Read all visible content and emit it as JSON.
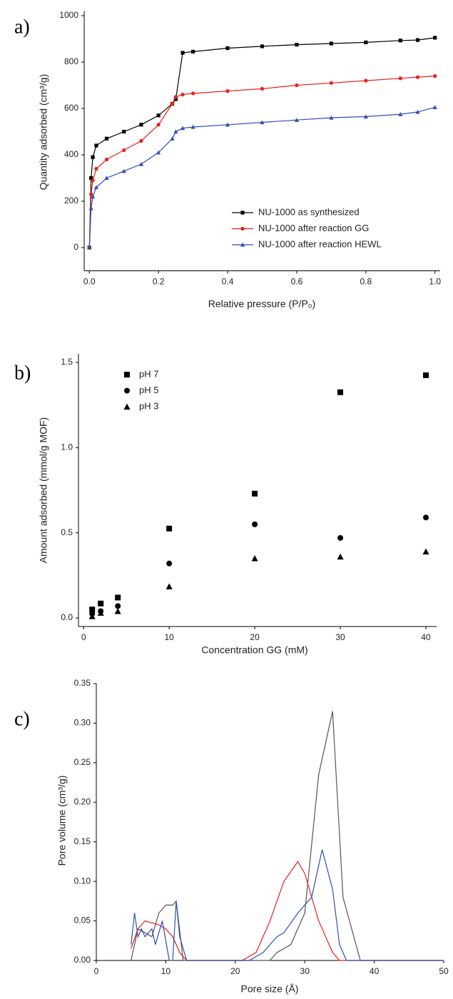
{
  "chart_data": [
    {
      "type": "line",
      "panel_label": "a)",
      "xlabel": "Relative pressure (P/P₀)",
      "ylabel": "Quantity adsorbed (cm³/g)",
      "xlim": [
        -0.015,
        1.015
      ],
      "ylim": [
        -100,
        1020
      ],
      "xticks": [
        {
          "value": 0,
          "label": "0.0"
        },
        0.2,
        0.4,
        0.6,
        0.8,
        {
          "value": 1,
          "label": "1.0"
        }
      ],
      "yticks": [
        0,
        200,
        400,
        600,
        800,
        1000
      ],
      "legend": "lower right",
      "markers": true,
      "x": [
        0.0,
        0.005,
        0.01,
        0.02,
        0.05,
        0.1,
        0.15,
        0.2,
        0.24,
        0.25,
        0.27,
        0.3,
        0.4,
        0.5,
        0.6,
        0.7,
        0.8,
        0.9,
        0.95,
        1.0
      ],
      "series": [
        {
          "name": "NU-1000 as synthesized",
          "color": "#000000",
          "marker": "square",
          "values": [
            0,
            300,
            390,
            440,
            470,
            500,
            530,
            570,
            620,
            640,
            840,
            845,
            860,
            868,
            875,
            880,
            885,
            893,
            895,
            905
          ]
        },
        {
          "name": "NU-1000 after reaction GG",
          "color": "#e8211c",
          "marker": "circle",
          "values": [
            0,
            230,
            290,
            340,
            380,
            420,
            460,
            530,
            620,
            650,
            660,
            665,
            675,
            685,
            700,
            710,
            720,
            730,
            735,
            740
          ]
        },
        {
          "name": "NU-1000 after reaction HEWL",
          "color": "#2f4fb5",
          "marker": "triangle",
          "values": [
            0,
            170,
            220,
            260,
            300,
            330,
            360,
            410,
            470,
            500,
            515,
            520,
            530,
            540,
            550,
            560,
            565,
            575,
            585,
            605
          ]
        }
      ]
    },
    {
      "type": "scatter",
      "panel_label": "b)",
      "xlabel": "Concentration GG (mM)",
      "ylabel": "Amount adsorbed (mmol/g MOF)",
      "xlim": [
        -0.6,
        41.25
      ],
      "ylim": [
        -0.05,
        1.55
      ],
      "xticks": [
        0,
        10,
        20,
        30,
        40
      ],
      "yticks": [
        {
          "value": 0,
          "label": "0.0"
        },
        0.5,
        {
          "value": 1,
          "label": "1.0"
        },
        1.5
      ],
      "legend": "upper left",
      "x": [
        1,
        2,
        4,
        10,
        20,
        30,
        40
      ],
      "series": [
        {
          "name": "pH 7",
          "color": "#000000",
          "marker": "square",
          "values": [
            0.05,
            0.085,
            0.12,
            0.525,
            0.73,
            1.325,
            1.425
          ]
        },
        {
          "name": "pH 5",
          "color": "#000000",
          "marker": "circle",
          "values": [
            0.025,
            0.04,
            0.07,
            0.32,
            0.55,
            0.47,
            0.59
          ]
        },
        {
          "name": "pH 3",
          "color": "#000000",
          "marker": "triangle",
          "values": [
            0.01,
            0.03,
            0.04,
            0.185,
            0.35,
            0.36,
            0.39
          ]
        }
      ]
    },
    {
      "type": "line",
      "panel_label": "c)",
      "xlabel": "Pore size (Å)",
      "ylabel": "Pore volume (cm³/g)",
      "xlim": [
        0,
        50
      ],
      "ylim": [
        0,
        0.35
      ],
      "xticks": [
        0,
        10,
        20,
        30,
        40,
        50
      ],
      "yticks": [
        {
          "value": 0,
          "label": "0.00"
        },
        0.05,
        {
          "value": 0.1,
          "label": "0.10"
        },
        0.15,
        {
          "value": 0.2,
          "label": "0.20"
        },
        0.25,
        {
          "value": 0.3,
          "label": "0.30"
        },
        0.35
      ],
      "markers": false,
      "series": [
        {
          "color": "#555555",
          "x": [
            5,
            6,
            7,
            8,
            9,
            10,
            11,
            11.5,
            12.5,
            25,
            26,
            28,
            30,
            32,
            34,
            35.5,
            38,
            50
          ],
          "values": [
            0,
            0.04,
            0.035,
            0.03,
            0.06,
            0.07,
            0.07,
            0.075,
            0,
            0,
            0.01,
            0.02,
            0.06,
            0.235,
            0.315,
            0.08,
            0,
            0
          ]
        },
        {
          "color": "#e8211c",
          "x": [
            5,
            6,
            7,
            9,
            10,
            11,
            12,
            13,
            21,
            23,
            25,
            27,
            29,
            30,
            32,
            34,
            35,
            50
          ],
          "values": [
            0.015,
            0.04,
            0.05,
            0.045,
            0.04,
            0.03,
            0.01,
            0,
            0,
            0.01,
            0.05,
            0.1,
            0.125,
            0.11,
            0.05,
            0.01,
            0,
            0
          ]
        },
        {
          "color": "#2f4fb5",
          "x": [
            5,
            5.5,
            6,
            6.5,
            7,
            8,
            8.5,
            9.5,
            10.5,
            11,
            11.5,
            12,
            13,
            22,
            24,
            26,
            27,
            29,
            31,
            32.5,
            34,
            35,
            36,
            50
          ],
          "values": [
            0.02,
            0.06,
            0.03,
            0.04,
            0.03,
            0.04,
            0.02,
            0.05,
            0,
            0,
            0.075,
            0.03,
            0,
            0,
            0.01,
            0.03,
            0.035,
            0.06,
            0.08,
            0.14,
            0.09,
            0.02,
            0,
            0
          ]
        }
      ]
    }
  ]
}
